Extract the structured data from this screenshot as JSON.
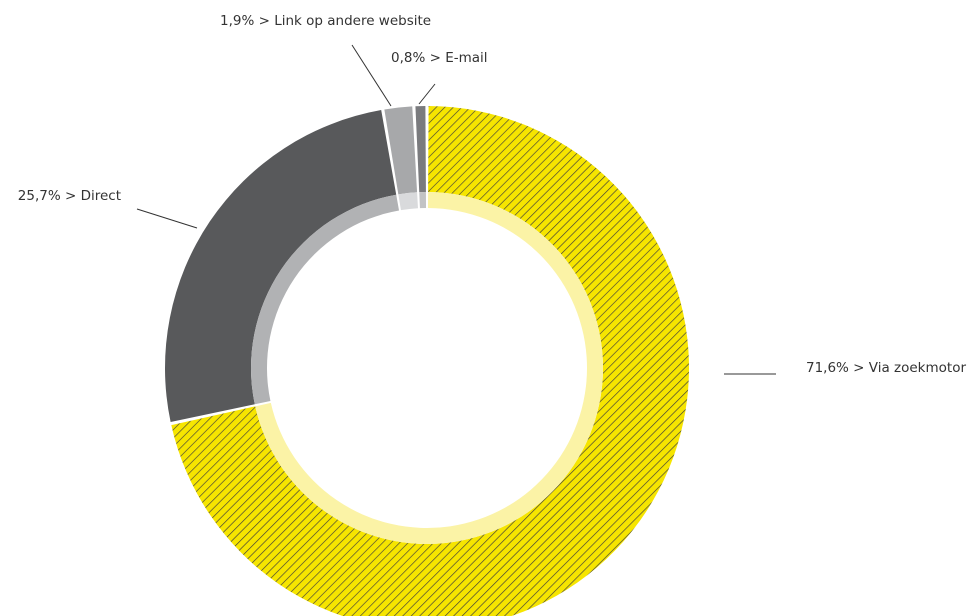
{
  "chart_data": {
    "type": "pie",
    "variant": "donut",
    "values_unit": "%",
    "slices": [
      {
        "label": "Via zoekmotor",
        "value": 71.6,
        "value_text": "71,6%",
        "label_text": "71,6% > Via zoekmotor",
        "color": "#f6e500",
        "hatch_color": "#3c3c3c",
        "inner_ring_color": "#fbf3a6",
        "pattern": "hatched"
      },
      {
        "label": "Direct",
        "value": 25.7,
        "value_text": "25,7%",
        "label_text": "25,7% > Direct",
        "color": "#58595b",
        "inner_ring_color": "#b1b2b4"
      },
      {
        "label": "Link op andere website",
        "value": 1.9,
        "value_text": "1,9%",
        "label_text": "1,9% > Link op andere website",
        "color": "#a7a8aa",
        "inner_ring_color": "#d9dadc"
      },
      {
        "label": "E-mail",
        "value": 0.8,
        "value_text": "0,8%",
        "label_text": "0,8% > E-mail",
        "color": "#7a7b7e",
        "inner_ring_color": "#c2c3c5"
      }
    ],
    "start_at": "top",
    "direction": "clockwise",
    "legend": "none"
  }
}
